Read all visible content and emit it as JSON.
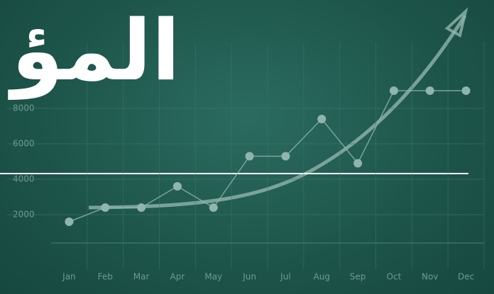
{
  "overlay_text": "المؤ",
  "chart_data": {
    "type": "line",
    "categories": [
      "Jan",
      "Feb",
      "Mar",
      "Apr",
      "May",
      "Jun",
      "Jul",
      "Aug",
      "Sep",
      "Oct",
      "Nov",
      "Dec"
    ],
    "series": [
      {
        "color": "#8fb5ad",
        "values": [
          1600,
          2400,
          2400,
          3600,
          2400,
          5300,
          5300,
          7400,
          4900,
          9000,
          9000,
          9000
        ]
      }
    ],
    "ylim": [
      0,
      12000
    ],
    "yticks": [
      2000,
      4000,
      6000,
      8000
    ],
    "grid": true
  }
}
